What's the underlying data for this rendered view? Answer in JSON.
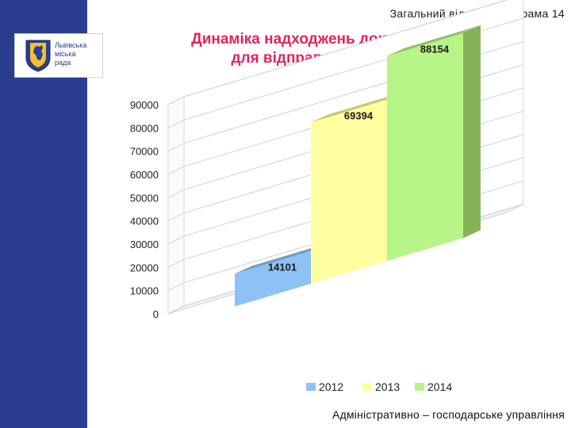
{
  "header": {
    "department": "Загальний відділ",
    "separator": "I",
    "diagram": "Діаграма 14"
  },
  "logo": {
    "text_line1": "Львівська",
    "text_line2": "міська",
    "text_line3": "рада"
  },
  "footer": {
    "text": "Адміністративно – господарське управління"
  },
  "colors": {
    "sidebar": "#2a3d8f",
    "title": "#e0245e"
  },
  "chart_data": {
    "type": "bar",
    "title_line1": "Динаміка надходжень документів",
    "title_line2": "для  відправки поштою",
    "categories": [
      "2012",
      "2013",
      "2014"
    ],
    "values": [
      14101,
      69394,
      88154
    ],
    "data_labels": [
      "14101",
      "69394",
      "88154"
    ],
    "ylim": [
      0,
      90000
    ],
    "yticks": [
      0,
      10000,
      20000,
      30000,
      40000,
      50000,
      60000,
      70000,
      80000,
      90000
    ],
    "grid": true,
    "legend_position": "bottom",
    "colors": [
      "#8ec2f4",
      "#ffffa0",
      "#b8f588"
    ],
    "top_colors": [
      "#6e9cc4",
      "#c9c772",
      "#99bd6e"
    ],
    "side_colors": [
      "#6fa4d8",
      "#d9d77f",
      "#86b258"
    ]
  }
}
